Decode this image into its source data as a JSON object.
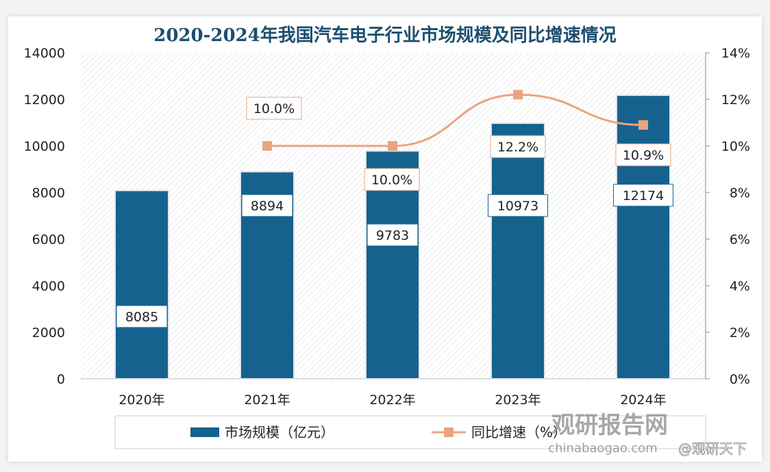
{
  "chart_data": {
    "type": "bar+line",
    "title": "2020-2024年我国汽车电子行业市场规模及同比增速情况",
    "categories": [
      "2020年",
      "2021年",
      "2022年",
      "2023年",
      "2024年"
    ],
    "series": [
      {
        "name": "市场规模（亿元）",
        "type": "bar",
        "axis": "left",
        "values": [
          8085,
          8894,
          9783,
          10973,
          12174
        ],
        "labels": [
          "8085",
          "8894",
          "9783",
          "10973",
          "12174"
        ],
        "color": "#16628e"
      },
      {
        "name": "同比增速（%）",
        "type": "line",
        "axis": "right",
        "values": [
          null,
          10.0,
          10.0,
          12.2,
          10.9
        ],
        "labels": [
          "",
          "10.0%",
          "10.0%",
          "12.2%",
          "10.9%"
        ],
        "color": "#e9a47f"
      }
    ],
    "left_axis": {
      "ylim": [
        0,
        14000
      ],
      "ticks": [
        "0",
        "2000",
        "4000",
        "6000",
        "8000",
        "10000",
        "12000",
        "14000"
      ]
    },
    "right_axis": {
      "ylim": [
        0,
        14
      ],
      "ticks": [
        "0%",
        "2%",
        "4%",
        "6%",
        "8%",
        "10%",
        "12%",
        "14%"
      ]
    },
    "legend": "bottom"
  },
  "watermark": {
    "logo": "观研报告网",
    "site": "chinabaogao.com",
    "handle": "@观研天下"
  }
}
